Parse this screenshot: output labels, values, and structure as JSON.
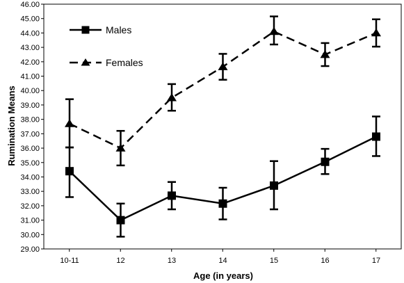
{
  "chart_data": {
    "type": "line",
    "title": "",
    "xlabel": "Age (in years)",
    "ylabel": "Rumination Means",
    "categories": [
      "10-11",
      "12",
      "13",
      "14",
      "15",
      "16",
      "17"
    ],
    "ylim": [
      29.0,
      46.0
    ],
    "ytick_step": 1.0,
    "yticks": [
      "29.00",
      "30.00",
      "31.00",
      "32.00",
      "33.00",
      "34.00",
      "35.00",
      "36.00",
      "37.00",
      "38.00",
      "39.00",
      "40.00",
      "41.00",
      "42.00",
      "43.00",
      "44.00",
      "45.00",
      "46.00"
    ],
    "grid": false,
    "legend_position": "top-left",
    "series": [
      {
        "name": "Males",
        "marker": "square",
        "line_style": "solid",
        "color": "#000000",
        "values": [
          34.4,
          31.0,
          32.7,
          32.15,
          33.4,
          35.05,
          36.8
        ],
        "error_low": [
          32.6,
          29.85,
          31.75,
          31.05,
          31.75,
          34.2,
          35.45
        ],
        "error_high": [
          36.05,
          32.15,
          33.65,
          33.25,
          35.1,
          35.95,
          38.2
        ]
      },
      {
        "name": "Females",
        "marker": "triangle",
        "line_style": "dashed",
        "color": "#000000",
        "values": [
          37.7,
          36.0,
          39.5,
          41.65,
          44.1,
          42.5,
          44.0
        ],
        "error_low": [
          36.05,
          34.8,
          38.6,
          40.75,
          43.2,
          41.7,
          43.05
        ],
        "error_high": [
          39.4,
          37.2,
          40.45,
          42.55,
          45.15,
          43.3,
          44.95
        ]
      }
    ]
  }
}
